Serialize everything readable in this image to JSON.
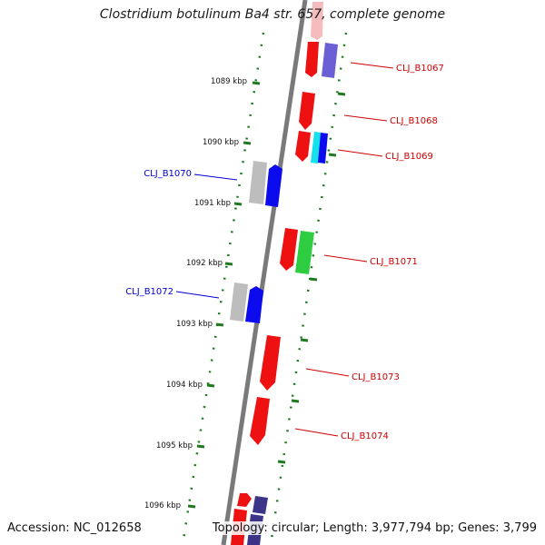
{
  "title": "Clostridium botulinum Ba4 str. 657, complete genome",
  "footer": {
    "accession": "Accession: NC_012658",
    "summary": "Topology: circular; Length: 3,977,794 bp; Genes: 3,799"
  },
  "ruler": [
    {
      "label": "1089 kbp"
    },
    {
      "label": "1090 kbp"
    },
    {
      "label": "1091 kbp"
    },
    {
      "label": "1092 kbp"
    },
    {
      "label": "1093 kbp"
    },
    {
      "label": "1094 kbp"
    },
    {
      "label": "1095 kbp"
    },
    {
      "label": "1096 kbp"
    }
  ],
  "gene_labels": [
    {
      "name": "CLJ_B1067",
      "color": "#cc0000"
    },
    {
      "name": "CLJ_B1068",
      "color": "#cc0000"
    },
    {
      "name": "CLJ_B1069",
      "color": "#cc0000"
    },
    {
      "name": "CLJ_B1070",
      "color": "#0000cc"
    },
    {
      "name": "CLJ_B1071",
      "color": "#cc0000"
    },
    {
      "name": "CLJ_B1072",
      "color": "#0000cc"
    },
    {
      "name": "CLJ_B1073",
      "color": "#cc0000"
    },
    {
      "name": "CLJ_B1074",
      "color": "#cc0000"
    }
  ],
  "colors": {
    "backbone": "#7a7a7a",
    "ruler_ticks": "#1f7a1f",
    "gene_red": "#ee1111",
    "gene_blue": "#0b0bee",
    "gene_grey": "#bdbdbd",
    "gene_purple": "#6b5fd6",
    "gene_cyan": "#14e0ee",
    "gene_green": "#2ecc40",
    "gene_navy": "#3b3488"
  }
}
